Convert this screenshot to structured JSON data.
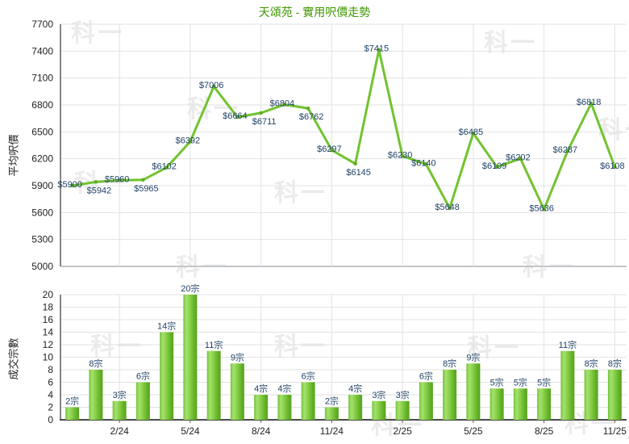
{
  "title": "天頌苑 - 實用呎價走勢",
  "watermark_text": "科一",
  "colors": {
    "title_green": "#3f9600",
    "line_green": "#72c32f",
    "marker_green": "#5fae22",
    "bar_light": "#a5e171",
    "bar_mid": "#8bd24a",
    "bar_dark": "#57a21e",
    "data_label_navy": "#1e4166",
    "axis_text": "#222222",
    "grid_gray": "#e2e2e2",
    "axis_line_gray": "#5f5f5f",
    "price_chart_bottom_border": "#c2c6ca"
  },
  "x_axis": {
    "tick_labels": [
      "2/24",
      "5/24",
      "8/24",
      "11/24",
      "2/25",
      "5/25",
      "8/25",
      "11/25"
    ],
    "tick_indexes": [
      2,
      5,
      8,
      11,
      14,
      17,
      20,
      23
    ],
    "n_slots": 24
  },
  "chart_data": [
    {
      "type": "line",
      "name": "average-price-per-sqft",
      "ylabel": "平均呎價",
      "ylim": [
        5000,
        7700
      ],
      "ytick_step": 300,
      "grid": true,
      "values": [
        5900,
        5942,
        5960,
        5965,
        6102,
        6392,
        7006,
        6664,
        6711,
        6804,
        6762,
        6297,
        6145,
        7415,
        6230,
        6140,
        5648,
        6485,
        6109,
        6202,
        5636,
        6287,
        6818,
        6108
      ],
      "point_labels": [
        "$5900",
        "$5942",
        "$5960",
        "$5965",
        "$6102",
        "$6392",
        "$7006",
        "$6664",
        "$6711",
        "$6804",
        "$6762",
        "$6297",
        "$6145",
        "$7415",
        "$6230",
        "$6140",
        "$5648",
        "$6485",
        "$6109",
        "$6202",
        "$5636",
        "$6287",
        "$6818",
        "$6108"
      ],
      "labels_below_indexes": [
        1,
        3,
        8,
        10,
        12
      ]
    },
    {
      "type": "bar",
      "name": "transaction-count",
      "ylabel": "成交宗數",
      "ylim": [
        0,
        20
      ],
      "ytick_step": 2,
      "grid": true,
      "values": [
        2,
        8,
        3,
        6,
        14,
        20,
        11,
        9,
        4,
        4,
        6,
        2,
        4,
        3,
        3,
        6,
        8,
        9,
        5,
        5,
        5,
        11,
        8,
        8
      ],
      "bar_labels": [
        "2宗",
        "8宗",
        "3宗",
        "6宗",
        "14宗",
        "20宗",
        "11宗",
        "9宗",
        "4宗",
        "4宗",
        "6宗",
        "2宗",
        "4宗",
        "3宗",
        "3宗",
        "6宗",
        "8宗",
        "9宗",
        "5宗",
        "5宗",
        "5宗",
        "11宗",
        "8宗",
        "8宗"
      ]
    }
  ]
}
